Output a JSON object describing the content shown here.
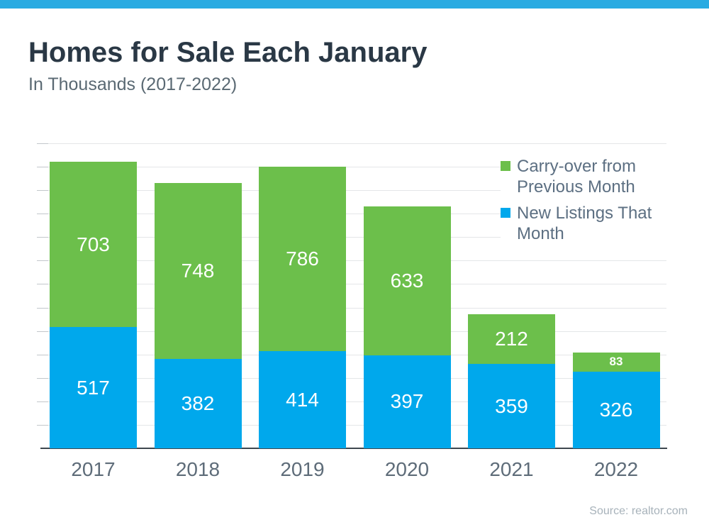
{
  "header": {
    "title": "Homes for Sale Each January",
    "subtitle": "In Thousands (2017-2022)"
  },
  "chart_data": {
    "type": "bar",
    "stacked": true,
    "title": "Homes for Sale Each January",
    "subtitle": "In Thousands (2017-2022)",
    "xlabel": "",
    "ylabel": "",
    "categories": [
      "2017",
      "2018",
      "2019",
      "2020",
      "2021",
      "2022"
    ],
    "series": [
      {
        "name": "New Listings That Month",
        "color": "#00A8EC",
        "values": [
          517,
          382,
          414,
          397,
          359,
          326
        ]
      },
      {
        "name": "Carry-over from Previous Month",
        "color": "#6CBF4B",
        "values": [
          703,
          748,
          786,
          633,
          212,
          83
        ]
      }
    ],
    "totals": [
      1220,
      1130,
      1200,
      1030,
      571,
      409
    ],
    "ylim": [
      0,
      1300
    ],
    "gridline_step": 100,
    "grid": true,
    "y_axis_labels_shown": false,
    "legend_position": "top-right"
  },
  "legend": {
    "items": [
      {
        "label": "Carry-over from Previous Month",
        "color": "#6CBF4B"
      },
      {
        "label": "New Listings That Month",
        "color": "#00A8EC"
      }
    ]
  },
  "source": "Source: realtor.com",
  "colors": {
    "top_strip": "#29ABE2",
    "bar_blue": "#00A8EC",
    "bar_green": "#6CBF4B",
    "title_text": "#2A3845",
    "subtitle_text": "#5A6973",
    "axis_label_text": "#5E6C79",
    "legend_text": "#5C6F82",
    "gridline": "#E4E6E8",
    "axis_line": "#3E474F",
    "source_text": "#A7B2BA"
  }
}
